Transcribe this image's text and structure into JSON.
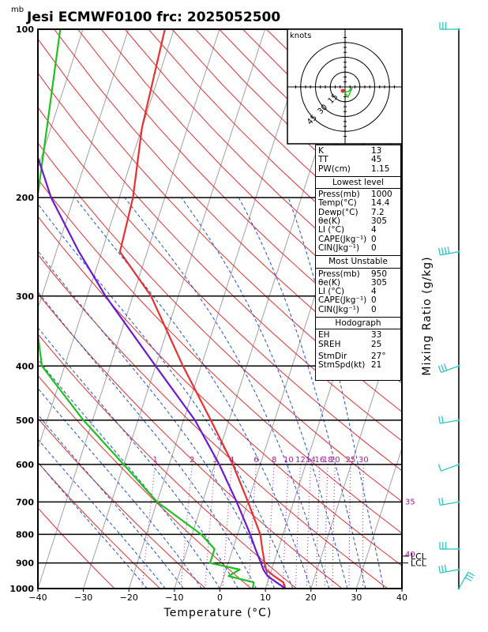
{
  "title": "Jesi ECMWF0100  frc: 2025052500",
  "unit_mb": "mb",
  "xlabel": "Temperature (°C)",
  "ylabel_right": "Mixing Ratio (g/kg)",
  "colors": {
    "temperature": "#e83030",
    "dewpoint": "#20c020",
    "parcel": "#6a1bd0",
    "isotherm": "#a0a0a0",
    "dry_adiabat": "#e03030",
    "moist_adiabat": "#2050d0",
    "mixing_ratio": "#a020a0",
    "wind_line": "#000000",
    "wind_barb": "#20c0c0"
  },
  "chart_data": {
    "type": "line",
    "x_ticks": [
      "−40",
      "−30",
      "−20",
      "−10",
      "0",
      "10",
      "20",
      "30",
      "40"
    ],
    "y_ticks": [
      "100",
      "200",
      "300",
      "400",
      "500",
      "600",
      "700",
      "800",
      "900",
      "1000"
    ],
    "xlim": [
      -40,
      40
    ],
    "ylim": [
      1000,
      100
    ],
    "y_scale": "log",
    "series": [
      {
        "key": "temperature",
        "p": [
          1000,
          975,
          950,
          925,
          900,
          850,
          800,
          700,
          600,
          500,
          400,
          300,
          250,
          200,
          150,
          100
        ],
        "t": [
          14.4,
          13.5,
          11,
          8.8,
          8,
          6.5,
          5,
          0,
          -6,
          -14,
          -24,
          -36,
          -46,
          -47,
          -50,
          -52
        ]
      },
      {
        "key": "dewpoint",
        "p": [
          1000,
          975,
          950,
          925,
          900,
          850,
          800,
          700,
          600,
          500,
          400,
          300,
          200,
          100
        ],
        "t": [
          7.2,
          7,
          1,
          3,
          -4,
          -4,
          -8,
          -20,
          -30,
          -42,
          -55,
          -62,
          -68,
          -75
        ]
      },
      {
        "key": "parcel",
        "p": [
          1000,
          975,
          950,
          925,
          900,
          850,
          800,
          700,
          600,
          500,
          400,
          300,
          250,
          200,
          130
        ],
        "t": [
          14.4,
          12,
          9.6,
          8.2,
          7.2,
          5,
          2.8,
          -2.5,
          -9,
          -17.5,
          -30,
          -46,
          -55,
          -65,
          -80
        ]
      }
    ],
    "isotherms_c": [
      -100,
      -90,
      -80,
      -70,
      -60,
      -50,
      -40,
      -30,
      -20,
      -10,
      0,
      10,
      20,
      30,
      40
    ],
    "mixing_ratio_lines": [
      {
        "value": 1,
        "label": "1"
      },
      {
        "value": 2,
        "label": "2"
      },
      {
        "value": 3,
        "label": "3"
      },
      {
        "value": 4,
        "label": "4"
      },
      {
        "value": 6,
        "label": "6"
      },
      {
        "value": 8,
        "label": "8"
      },
      {
        "value": 10,
        "label": "10"
      },
      {
        "value": 12,
        "label": "12"
      },
      {
        "value": 14,
        "label": "14"
      },
      {
        "value": 16,
        "label": "16"
      },
      {
        "value": 18,
        "label": "18"
      },
      {
        "value": 20,
        "label": "20"
      },
      {
        "value": 25,
        "label": "25"
      },
      {
        "value": 30,
        "label": "30"
      }
    ],
    "right_labels": [
      {
        "text": "35",
        "p": 700
      },
      {
        "text": "40",
        "p": 870
      }
    ],
    "lcl_labels": [
      {
        "text": "LCL",
        "p": 875
      },
      {
        "text": "LCL",
        "p": 900
      }
    ],
    "wind_profile": [
      {
        "p": 1000,
        "dir": 30,
        "spd": 30
      },
      {
        "p": 925,
        "dir": 260,
        "spd": 30
      },
      {
        "p": 850,
        "dir": 270,
        "spd": 25
      },
      {
        "p": 700,
        "dir": 260,
        "spd": 20
      },
      {
        "p": 600,
        "dir": 250,
        "spd": 10
      },
      {
        "p": 500,
        "dir": 260,
        "spd": 15
      },
      {
        "p": 400,
        "dir": 250,
        "spd": 25
      },
      {
        "p": 250,
        "dir": 260,
        "spd": 40
      },
      {
        "p": 100,
        "dir": 270,
        "spd": 30
      }
    ]
  },
  "hodograph": {
    "label": "knots",
    "rings": [
      "15",
      "30",
      "45"
    ],
    "trace_kt": [
      [
        -0.5,
        -3
      ],
      [
        1.8,
        -6.5
      ],
      [
        4.5,
        -0.5
      ],
      [
        2,
        -3
      ],
      [
        0,
        -3
      ],
      [
        -1,
        -3.5
      ]
    ],
    "storm_motion_kt": [
      -1.5,
      -2.5
    ]
  },
  "indices": {
    "top": [
      {
        "name": "K",
        "value": "13"
      },
      {
        "name": "TT",
        "value": "45"
      },
      {
        "name": "PW(cm)",
        "value": "1.15"
      }
    ],
    "lowest_title": "Lowest level",
    "lowest": [
      {
        "name": "Press(mb)",
        "value": "1000"
      },
      {
        "name": "Temp(°C)",
        "value": "14.4"
      },
      {
        "name": "Dewp(°C)",
        "value": "7.2"
      },
      {
        "name": "θe(K)",
        "value": "305"
      },
      {
        "name": "LI (°C)",
        "value": "4"
      },
      {
        "name": "CAPE(Jkg⁻¹)",
        "value": "0"
      },
      {
        "name": "CIN(Jkg⁻¹)",
        "value": "0"
      }
    ],
    "unstable_title": "Most Unstable",
    "unstable": [
      {
        "name": "Press(mb)",
        "value": "950"
      },
      {
        "name": "θe(K)",
        "value": "305"
      },
      {
        "name": "LI (°C)",
        "value": "4"
      },
      {
        "name": "CAPE(Jkg⁻¹)",
        "value": "0"
      },
      {
        "name": "CIN(Jkg⁻¹)",
        "value": "0"
      }
    ],
    "hodo_title": "Hodograph",
    "hodo": [
      {
        "name": "EH",
        "value": "33"
      },
      {
        "name": "SREH",
        "value": "25"
      }
    ],
    "storm": [
      {
        "name": "StmDir",
        "value": "27°"
      },
      {
        "name": "StmSpd(kt)",
        "value": "21"
      }
    ]
  }
}
